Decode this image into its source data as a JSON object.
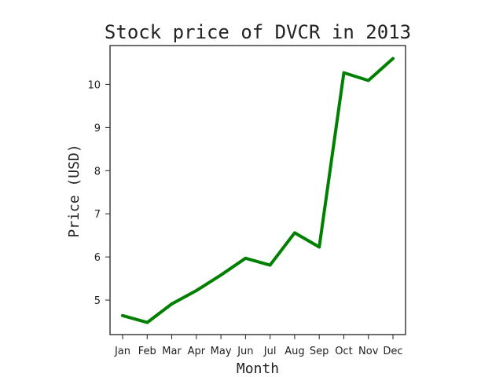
{
  "chart_data": {
    "type": "line",
    "title": "Stock price of DVCR in 2013",
    "xlabel": "Month",
    "ylabel": "Price (USD)",
    "categories": [
      "Jan",
      "Feb",
      "Mar",
      "Apr",
      "May",
      "Jun",
      "Jul",
      "Aug",
      "Sep",
      "Oct",
      "Nov",
      "Dec"
    ],
    "series": [
      {
        "values": [
          4.64,
          4.48,
          4.91,
          5.22,
          5.58,
          5.97,
          5.81,
          6.56,
          6.23,
          10.27,
          10.09,
          10.6
        ],
        "color": "#008000"
      }
    ],
    "ylim": [
      4.2,
      10.9
    ],
    "yticks": [
      5,
      6,
      7,
      8,
      9,
      10
    ],
    "grid": false,
    "legend": "none"
  }
}
